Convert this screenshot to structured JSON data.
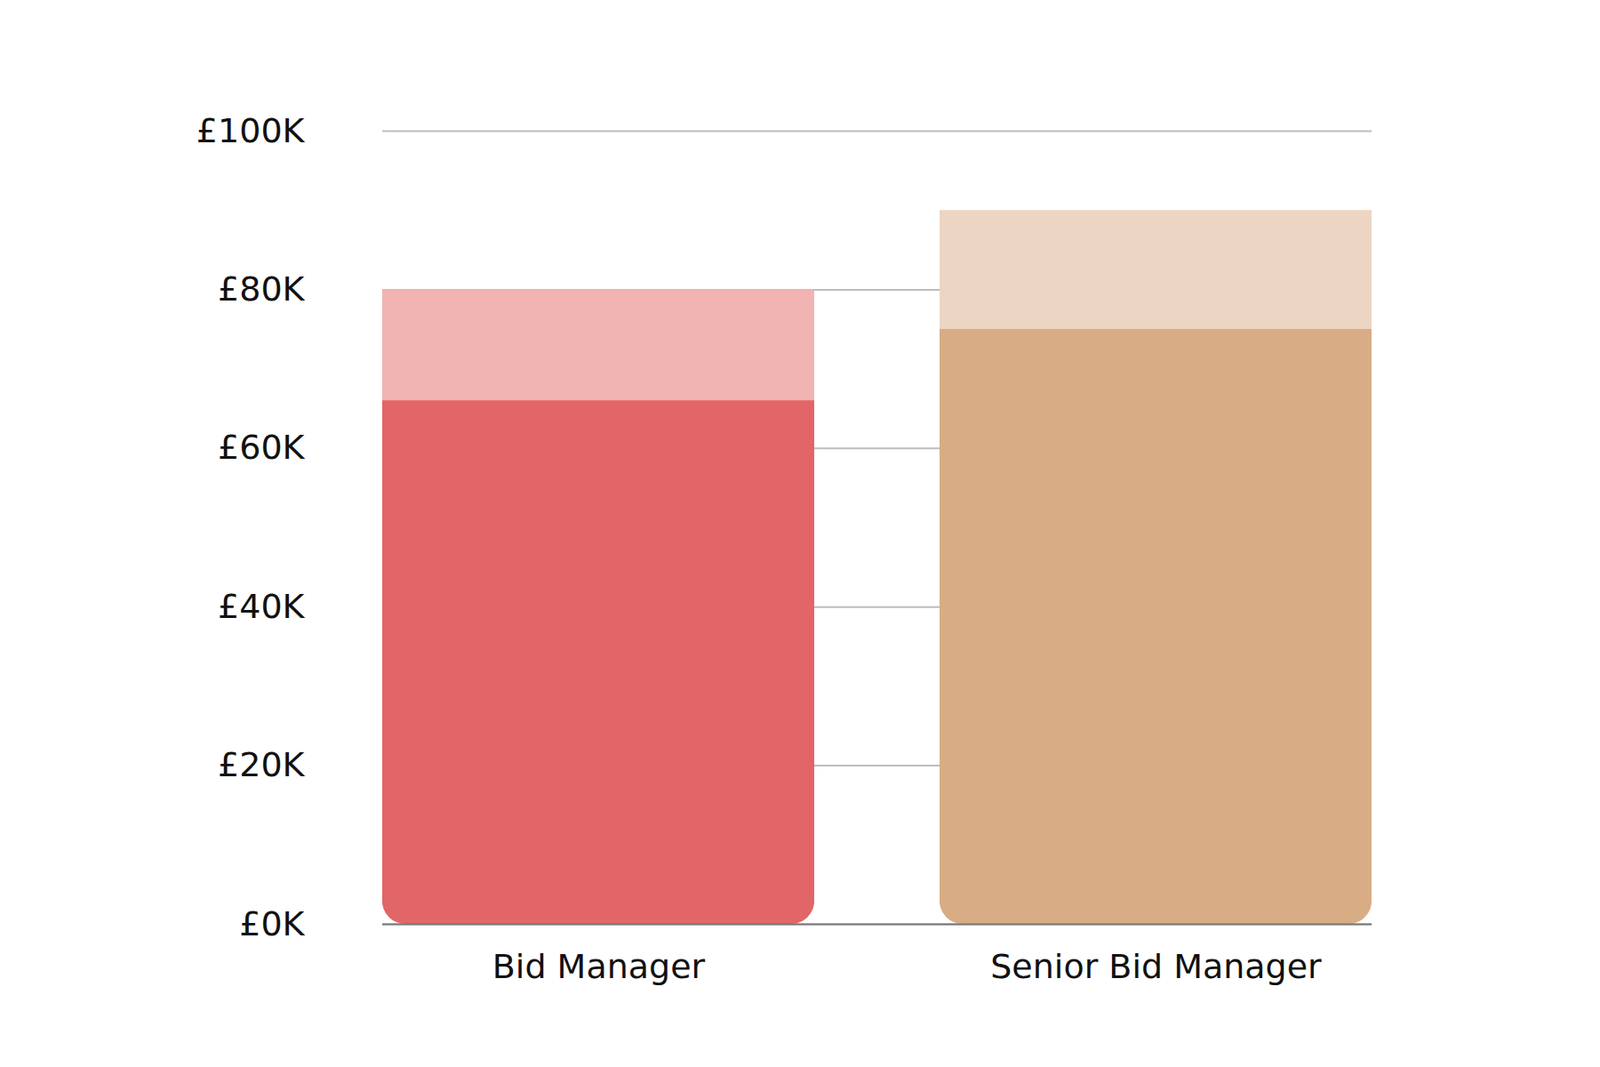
{
  "chart_data": {
    "type": "bar",
    "categories": [
      "Bid Manager",
      "Senior Bid Manager"
    ],
    "series": [
      {
        "colors": [
          "#f2b3b3",
          "#ecd5c3"
        ],
        "values": [
          80,
          90
        ]
      },
      {
        "colors": [
          "#e26567",
          "#d8ac85"
        ],
        "values": [
          66,
          75
        ]
      }
    ],
    "ylim": [
      0,
      100
    ],
    "yticks": [
      {
        "value": 0,
        "label": "£0K"
      },
      {
        "value": 20,
        "label": "£20K"
      },
      {
        "value": 40,
        "label": "£40K"
      },
      {
        "value": 60,
        "label": "£60K"
      },
      {
        "value": 80,
        "label": "£80K"
      },
      {
        "value": 100,
        "label": "£100K"
      }
    ],
    "grid": true
  }
}
